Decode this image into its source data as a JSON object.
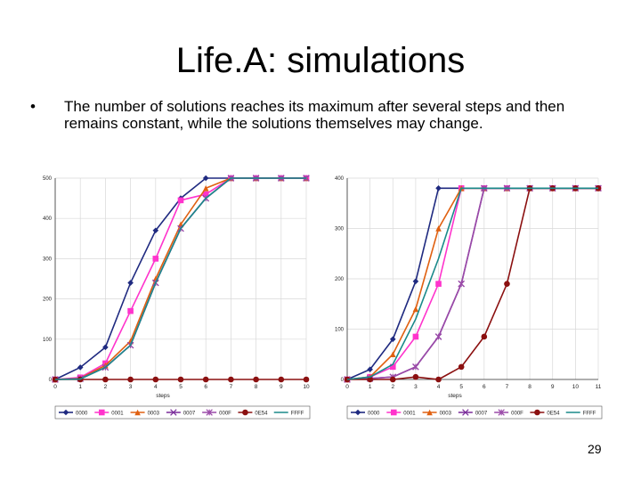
{
  "slide": {
    "title": "Life.A: simulations",
    "bullet_symbol": "•",
    "bullet_text": "The number of solutions reaches its maximum after several steps and then remains constant, while the solutions themselves may change.",
    "page_number": "29"
  },
  "chart_data": [
    {
      "type": "line",
      "title": "",
      "xlabel": "steps",
      "ylabel": "",
      "x": [
        0,
        1,
        2,
        3,
        4,
        5,
        6,
        7,
        8,
        9,
        10
      ],
      "xlim": [
        0,
        10
      ],
      "ylim": [
        0,
        500
      ],
      "yticks": [
        0,
        100,
        200,
        300,
        400,
        500
      ],
      "grid": true,
      "legend": "bottom",
      "series": [
        {
          "name": "0000",
          "color": "#1f2a80",
          "marker": "diamond",
          "values": [
            0,
            30,
            80,
            240,
            370,
            450,
            500,
            500,
            500,
            500,
            500
          ]
        },
        {
          "name": "0001",
          "color": "#ff33cc",
          "marker": "square",
          "values": [
            0,
            5,
            40,
            170,
            300,
            445,
            460,
            500,
            500,
            500,
            500
          ]
        },
        {
          "name": "0003",
          "color": "#e06010",
          "marker": "triangle",
          "values": [
            0,
            3,
            35,
            95,
            250,
            385,
            475,
            500,
            500,
            500,
            500
          ]
        },
        {
          "name": "0007",
          "color": "#7a2c9a",
          "marker": "x",
          "values": [
            0,
            2,
            30,
            85,
            240,
            375,
            450,
            500,
            500,
            500,
            500
          ]
        },
        {
          "name": "000F",
          "color": "#9a4aa8",
          "marker": "star",
          "values": [
            0,
            2,
            30,
            85,
            240,
            375,
            450,
            500,
            500,
            500,
            500
          ]
        },
        {
          "name": "0E54",
          "color": "#8b1010",
          "marker": "circle",
          "values": [
            0,
            0,
            0,
            0,
            0,
            0,
            0,
            0,
            0,
            0,
            0
          ]
        },
        {
          "name": "FFFF",
          "color": "#1a8a8a",
          "marker": "none",
          "values": [
            0,
            1,
            30,
            85,
            240,
            375,
            450,
            500,
            500,
            500,
            500
          ]
        }
      ]
    },
    {
      "type": "line",
      "title": "",
      "xlabel": "steps",
      "ylabel": "",
      "x": [
        0,
        1,
        2,
        3,
        4,
        5,
        6,
        7,
        8,
        9,
        10,
        11
      ],
      "xlim": [
        0,
        11
      ],
      "ylim": [
        0,
        400
      ],
      "yticks": [
        0,
        100,
        200,
        300,
        400
      ],
      "grid": true,
      "legend": "bottom",
      "series": [
        {
          "name": "0000",
          "color": "#1f2a80",
          "marker": "diamond",
          "values": [
            0,
            20,
            80,
            195,
            380,
            380,
            380,
            380,
            380,
            380,
            380,
            380
          ]
        },
        {
          "name": "0001",
          "color": "#ff33cc",
          "marker": "square",
          "values": [
            0,
            5,
            25,
            85,
            190,
            380,
            380,
            380,
            380,
            380,
            380,
            380
          ]
        },
        {
          "name": "0003",
          "color": "#e06010",
          "marker": "triangle",
          "values": [
            0,
            5,
            50,
            140,
            300,
            380,
            380,
            380,
            380,
            380,
            380,
            380
          ]
        },
        {
          "name": "0007",
          "color": "#7a2c9a",
          "marker": "x",
          "values": [
            0,
            2,
            5,
            25,
            85,
            190,
            380,
            380,
            380,
            380,
            380,
            380
          ]
        },
        {
          "name": "000F",
          "color": "#9a4aa8",
          "marker": "star",
          "values": [
            0,
            2,
            5,
            25,
            85,
            190,
            380,
            380,
            380,
            380,
            380,
            380
          ]
        },
        {
          "name": "0E54",
          "color": "#8b1010",
          "marker": "circle",
          "values": [
            0,
            0,
            0,
            5,
            0,
            25,
            85,
            190,
            380,
            380,
            380,
            380
          ]
        },
        {
          "name": "FFFF",
          "color": "#1a8a8a",
          "marker": "none",
          "values": [
            0,
            5,
            30,
            120,
            240,
            380,
            380,
            380,
            380,
            380,
            380,
            380
          ]
        }
      ]
    }
  ]
}
